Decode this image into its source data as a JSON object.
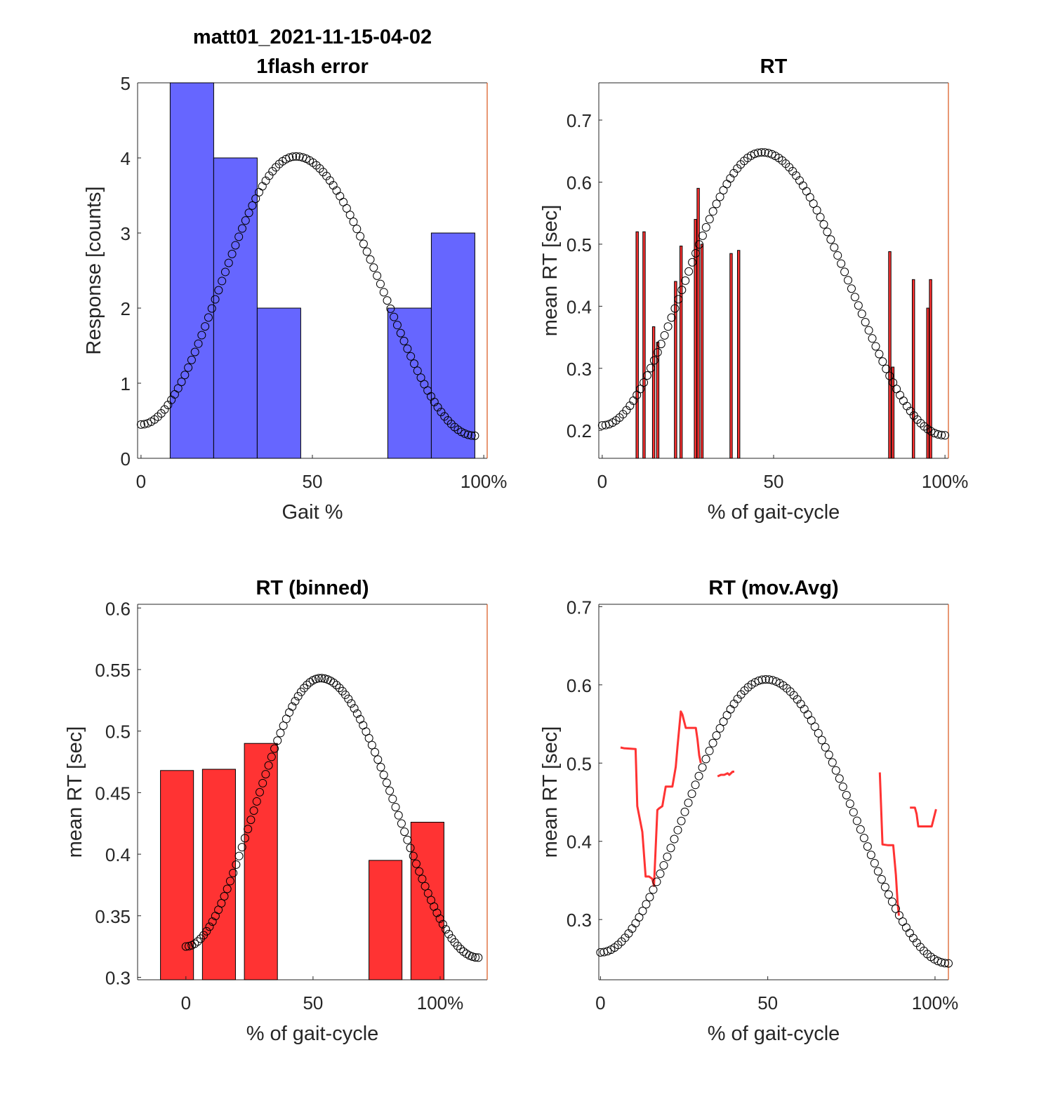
{
  "figure": {
    "background": "#ffffff"
  },
  "colors": {
    "hist_fill": "#6666ff",
    "bar_fill": "#ff3333",
    "line": "#ff3333",
    "marker": "#000000",
    "right_axis": "#d95319"
  },
  "chart_data": [
    {
      "type": "bar",
      "title": "matt01_2021-11-15-04-02",
      "subtitle": "1flash error",
      "xlabel": "Gait %",
      "ylabel": "Response [counts]",
      "xlim": [
        -1,
        101
      ],
      "ylim": [
        0,
        5
      ],
      "xticks": [
        0,
        50,
        100
      ],
      "xtick_labels": [
        "0",
        "50",
        "100%"
      ],
      "yticks": [
        0,
        1,
        2,
        3,
        4,
        5
      ],
      "ytick_labels": [
        "0",
        "1",
        "2",
        "3",
        "4",
        "5"
      ],
      "bar_edges": [
        8.5,
        21.2,
        33.9,
        46.6,
        59.3,
        72.0,
        84.7,
        97.4
      ],
      "values": [
        5,
        4,
        2,
        0,
        0,
        2,
        3
      ],
      "overlay": {
        "type": "scatter",
        "x_range": [
          0,
          97.4
        ],
        "y_min": 0.45,
        "y_peak": 4.02,
        "y_end": 0.3,
        "x_peak": 45.2,
        "points": 100
      }
    },
    {
      "type": "bar",
      "title": "RT",
      "xlabel": "% of gait-cycle",
      "ylabel": "mean RT [sec]",
      "xlim": [
        -1,
        101
      ],
      "ylim": [
        0.155,
        0.76
      ],
      "xticks": [
        0,
        50,
        100
      ],
      "xtick_labels": [
        "0",
        "50",
        "100%"
      ],
      "yticks": [
        0.2,
        0.3,
        0.4,
        0.5,
        0.6,
        0.7
      ],
      "ytick_labels": [
        "0.2",
        "0.3",
        "0.4",
        "0.5",
        "0.6",
        "0.7"
      ],
      "bar_width": 0.7,
      "x": [
        10.2,
        12.2,
        15.0,
        16.2,
        21.4,
        23.0,
        27.2,
        28.0,
        29.1,
        37.6,
        39.8,
        83.9,
        84.8,
        90.8,
        95.0,
        95.8
      ],
      "values": [
        0.52,
        0.52,
        0.367,
        0.342,
        0.44,
        0.497,
        0.54,
        0.59,
        0.5,
        0.485,
        0.49,
        0.488,
        0.302,
        0.443,
        0.397,
        0.443
      ],
      "overlay": {
        "type": "scatter",
        "x_range": [
          0,
          100
        ],
        "y_min": 0.208,
        "y_peak": 0.648,
        "y_end": 0.192,
        "x_peak": 46.7,
        "points": 100
      }
    },
    {
      "type": "bar",
      "title": "RT (binned)",
      "xlabel": "% of gait-cycle",
      "ylabel": "mean RT [sec]",
      "xlim": [
        -19,
        118.5
      ],
      "ylim": [
        0.298,
        0.603
      ],
      "xticks": [
        0,
        50,
        100
      ],
      "xtick_labels": [
        "0",
        "50",
        "100%"
      ],
      "yticks": [
        0.3,
        0.35,
        0.4,
        0.45,
        0.5,
        0.55,
        0.6
      ],
      "ytick_labels": [
        "0.3",
        "0.35",
        "0.4",
        "0.45",
        "0.5",
        "0.55",
        "0.6"
      ],
      "bar_width": 13,
      "x": [
        -3.5,
        13.0,
        29.5,
        78.5,
        95.0
      ],
      "values": [
        0.468,
        0.469,
        0.49,
        0.395,
        0.426
      ],
      "overlay": {
        "type": "scatter",
        "x_range": [
          0,
          115
        ],
        "y_min": 0.325,
        "y_peak": 0.543,
        "y_end": 0.316,
        "x_peak": 53.0,
        "points": 100
      }
    },
    {
      "type": "line",
      "title": "RT (mov.Avg)",
      "xlabel": "% of gait-cycle",
      "ylabel": "mean RT [sec]",
      "xlim": [
        -0.5,
        104
      ],
      "ylim": [
        0.223,
        0.703
      ],
      "xticks": [
        0,
        50,
        100
      ],
      "xtick_labels": [
        "0",
        "50",
        "100%"
      ],
      "yticks": [
        0.3,
        0.4,
        0.5,
        0.6,
        0.7
      ],
      "ytick_labels": [
        "0.3",
        "0.4",
        "0.5",
        "0.6",
        "0.7"
      ],
      "series": [
        {
          "x": [
            6,
            7,
            10.5,
            11,
            11.7,
            12.5,
            13.5,
            14.5,
            15.5,
            16,
            17,
            17.5,
            18.5,
            19.5,
            20.5,
            21.5,
            22.5,
            23,
            24,
            24.5,
            25.5,
            26.5,
            28.5,
            29,
            29.5,
            30
          ],
          "y": [
            0.52,
            0.519,
            0.518,
            0.445,
            0.43,
            0.412,
            0.355,
            0.355,
            0.352,
            0.343,
            0.44,
            0.442,
            0.445,
            0.47,
            0.47,
            0.47,
            0.495,
            0.52,
            0.566,
            0.562,
            0.545,
            0.545,
            0.545,
            0.53,
            0.51,
            0.5
          ]
        },
        {
          "x": [
            35,
            36,
            37,
            38,
            38.5,
            39.5,
            40
          ],
          "y": [
            0.483,
            0.485,
            0.485,
            0.487,
            0.485,
            0.489,
            0.489
          ]
        },
        {
          "x": [
            83.5,
            84,
            84.3,
            86,
            87.5,
            88.3,
            88.8,
            89.2
          ],
          "y": [
            0.488,
            0.43,
            0.396,
            0.395,
            0.395,
            0.357,
            0.322,
            0.305
          ]
        },
        {
          "x": [
            92.5,
            94,
            94.5,
            95,
            97.5,
            99,
            100.3
          ],
          "y": [
            0.443,
            0.443,
            0.435,
            0.419,
            0.419,
            0.419,
            0.441
          ]
        }
      ],
      "overlay": {
        "type": "scatter",
        "x_range": [
          0,
          104
        ],
        "y_min": 0.258,
        "y_peak": 0.607,
        "y_end": 0.244,
        "x_peak": 49.5,
        "points": 100
      }
    }
  ]
}
